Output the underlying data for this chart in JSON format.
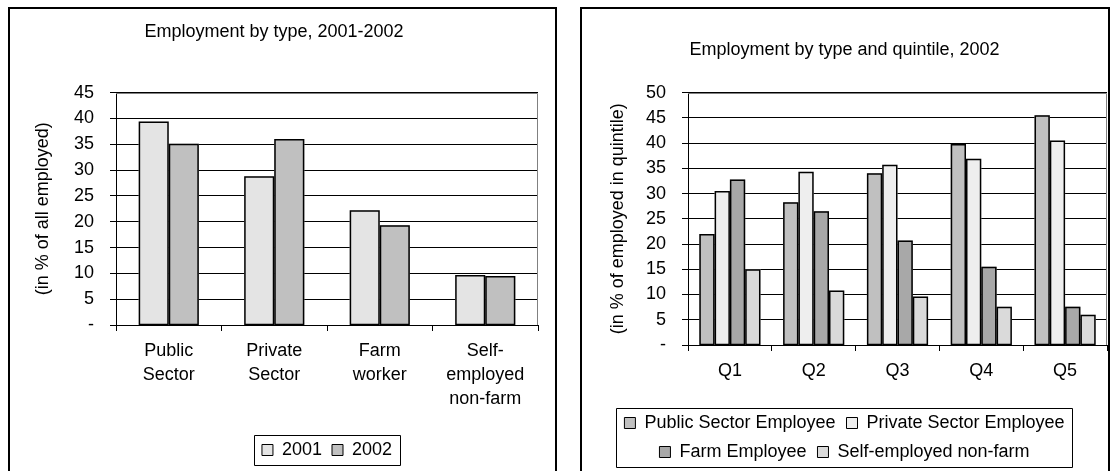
{
  "chart_data": [
    {
      "type": "bar",
      "title": "Employment by type, 2001-2002",
      "ylabel": "(in % of all employed)",
      "categories": [
        "Public Sector",
        "Private Sector",
        "Farm worker",
        "Self-employed non-farm"
      ],
      "series": [
        {
          "name": "2001",
          "color": "#e4e4e4",
          "values": [
            39.4,
            28.8,
            22.2,
            9.7
          ]
        },
        {
          "name": "2002",
          "color": "#c0c0c0",
          "values": [
            35.1,
            36.0,
            19.3,
            9.5
          ]
        }
      ],
      "ylim": [
        0,
        45
      ],
      "yticks": [
        {
          "value": 0,
          "label": "-"
        },
        5,
        10,
        15,
        20,
        25,
        30,
        35,
        40,
        45
      ],
      "grid": "y",
      "legend": "bottom"
    },
    {
      "type": "bar",
      "title": "Employment by type and quintile, 2002",
      "ylabel": "(in % of employed in quintile)",
      "categories": [
        "Q1",
        "Q2",
        "Q3",
        "Q4",
        "Q5"
      ],
      "series": [
        {
          "name": "Public Sector Employee",
          "color": "#c0c0c0",
          "values": [
            22.0,
            28.3,
            34.0,
            39.8,
            45.5
          ]
        },
        {
          "name": "Private Sector Employee",
          "color": "#eeeeee",
          "values": [
            30.5,
            34.3,
            35.7,
            36.9,
            40.5
          ]
        },
        {
          "name": "Farm Employee",
          "color": "#a8a8a8",
          "values": [
            32.8,
            26.5,
            20.7,
            15.5,
            7.6
          ]
        },
        {
          "name": "Self-employed non-farm",
          "color": "#dadada",
          "values": [
            15.0,
            10.8,
            9.6,
            7.6,
            6.0
          ]
        }
      ],
      "ylim": [
        0,
        50
      ],
      "yticks": [
        {
          "value": 0,
          "label": "-"
        },
        5,
        10,
        15,
        20,
        25,
        30,
        35,
        40,
        45,
        50
      ],
      "grid": "y",
      "legend": "bottom"
    }
  ]
}
